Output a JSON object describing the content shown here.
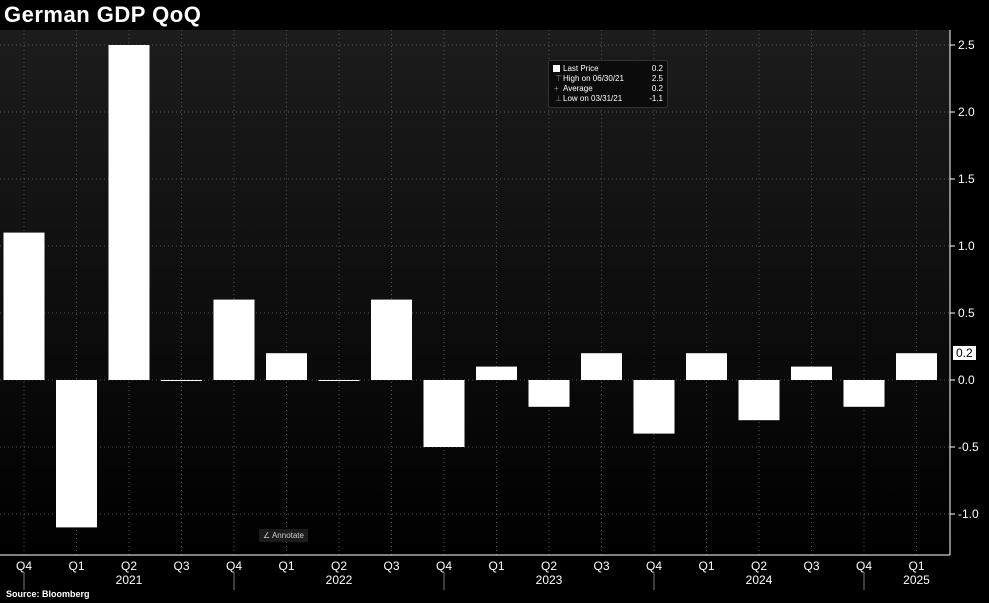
{
  "title": "German GDP QoQ",
  "source": "Source: Bloomberg",
  "annotate_label": "Annotate",
  "legend": {
    "last_price": {
      "label": "Last Price",
      "value": "0.2"
    },
    "high": {
      "label": "High on 06/30/21",
      "value": "2.5"
    },
    "average": {
      "label": "Average",
      "value": "0.2"
    },
    "low": {
      "label": "Low on 03/31/21",
      "value": "-1.1"
    }
  },
  "last_badge": "0.2",
  "chart_data": {
    "type": "bar",
    "title": "German GDP QoQ",
    "categories": [
      "Q4",
      "Q1",
      "Q2",
      "Q3",
      "Q4",
      "Q1",
      "Q2",
      "Q3",
      "Q4",
      "Q1",
      "Q2",
      "Q3",
      "Q4",
      "Q1",
      "Q2",
      "Q3",
      "Q4",
      "Q1"
    ],
    "year_labels": [
      {
        "index": 2,
        "label": "2021"
      },
      {
        "index": 6,
        "label": "2022"
      },
      {
        "index": 10,
        "label": "2023"
      },
      {
        "index": 14,
        "label": "2024"
      },
      {
        "index": 17,
        "label": "2025"
      }
    ],
    "values": [
      1.1,
      -1.1,
      2.5,
      0.0,
      0.6,
      0.2,
      0.0,
      0.6,
      -0.5,
      0.1,
      -0.2,
      0.2,
      -0.4,
      0.2,
      -0.3,
      0.1,
      -0.2,
      0.2
    ],
    "yticks": [
      -1.0,
      -0.5,
      0.0,
      0.5,
      1.0,
      1.5,
      2.0,
      2.5
    ],
    "ylim": [
      -1.3,
      2.6
    ],
    "grid": true,
    "bar_color": "#ffffff",
    "legend_position": "top-center"
  }
}
